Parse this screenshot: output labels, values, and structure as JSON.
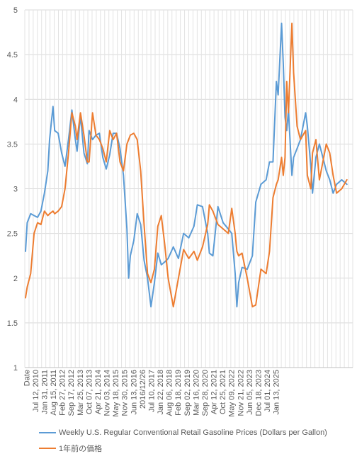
{
  "chart_data": {
    "type": "line",
    "ylim": [
      1,
      5
    ],
    "yticks": [
      1,
      1.5,
      2,
      2.5,
      3,
      3.5,
      4,
      4.5,
      5
    ],
    "grid": true,
    "legend_position": "bottom",
    "x_tick_labels": [
      "Date",
      "Jul 12, 2010",
      "Jan 31, 2011",
      "Aug 15, 2011",
      "Feb 27, 2012",
      "Sep 17, 2012",
      "Mar 25, 2013",
      "Oct 07, 2013",
      "Apr 21, 2014",
      "Nov 03, 2014",
      "May 18, 2015",
      "Nov 30, 2015",
      "Jun 13, 2016",
      "2016/12/26",
      "Jul 10, 2017",
      "Jan 22, 2018",
      "Aug 06, 2018",
      "Feb 18, 2019",
      "Sep 02, 2019",
      "Mar 16, 2020",
      "Sep 28, 2020",
      "Apr 12, 2021",
      "Oct 25, 2021",
      "May 09, 2022",
      "Nov 21, 2022",
      "Jun 05, 2023",
      "Dec 18, 2023",
      "Jul 01, 2024",
      "Jan 13, 2025"
    ],
    "series": [
      {
        "name": "Weekly U.S. Regular Conventional Retail Gasoline Prices (Dollars per Gallon)",
        "color": "#5B9BD5",
        "x": [
          "2010-01",
          "2010-02",
          "2010-04",
          "2010-06",
          "2010-08",
          "2010-10",
          "2010-12",
          "2011-02",
          "2011-03",
          "2011-05",
          "2011-06",
          "2011-08",
          "2011-10",
          "2011-12",
          "2012-02",
          "2012-04",
          "2012-06",
          "2012-07",
          "2012-09",
          "2012-11",
          "2013-01",
          "2013-02",
          "2013-04",
          "2013-06",
          "2013-08",
          "2013-10",
          "2013-12",
          "2014-02",
          "2014-04",
          "2014-06",
          "2014-08",
          "2014-10",
          "2014-12",
          "2015-01",
          "2015-02",
          "2015-04",
          "2015-06",
          "2015-08",
          "2015-10",
          "2015-12",
          "2016-02",
          "2016-04",
          "2016-06",
          "2016-08",
          "2016-10",
          "2016-12",
          "2017-03",
          "2017-06",
          "2017-09",
          "2017-12",
          "2018-03",
          "2018-05",
          "2018-08",
          "2018-11",
          "2018-12",
          "2019-02",
          "2019-05",
          "2019-08",
          "2019-11",
          "2020-01",
          "2020-03",
          "2020-04",
          "2020-05",
          "2020-07",
          "2020-10",
          "2021-01",
          "2021-03",
          "2021-06",
          "2021-09",
          "2021-11",
          "2022-01",
          "2022-03",
          "2022-04",
          "2022-06",
          "2022-07",
          "2022-08",
          "2022-09",
          "2022-10",
          "2022-12",
          "2023-01",
          "2023-03",
          "2023-05",
          "2023-08",
          "2023-09",
          "2023-11",
          "2023-12",
          "2024-02",
          "2024-04",
          "2024-06",
          "2024-08",
          "2024-10",
          "2024-12",
          "2025-02",
          "2025-05",
          "2025-08"
        ],
        "values": [
          2.3,
          2.62,
          2.72,
          2.7,
          2.68,
          2.75,
          2.95,
          3.2,
          3.55,
          3.92,
          3.65,
          3.62,
          3.4,
          3.25,
          3.55,
          3.88,
          3.55,
          3.42,
          3.82,
          3.4,
          3.28,
          3.65,
          3.55,
          3.6,
          3.62,
          3.35,
          3.22,
          3.38,
          3.62,
          3.62,
          3.45,
          3.15,
          2.55,
          2.0,
          2.25,
          2.42,
          2.72,
          2.6,
          2.2,
          2.0,
          1.68,
          1.95,
          2.28,
          2.15,
          2.18,
          2.22,
          2.35,
          2.22,
          2.5,
          2.45,
          2.58,
          2.82,
          2.8,
          2.5,
          2.28,
          2.25,
          2.8,
          2.62,
          2.55,
          2.5,
          2.05,
          1.68,
          1.95,
          2.12,
          2.1,
          2.25,
          2.85,
          3.05,
          3.1,
          3.3,
          3.3,
          4.2,
          4.05,
          4.85,
          4.4,
          3.8,
          3.65,
          3.88,
          3.15,
          3.35,
          3.45,
          3.55,
          3.85,
          3.7,
          3.25,
          2.95,
          3.35,
          3.5,
          3.35,
          3.2,
          3.1,
          2.95,
          3.05,
          3.1,
          3.05
        ]
      },
      {
        "name": "1年前の価格",
        "color": "#ED7D31",
        "x": [
          "2010-01",
          "2010-02",
          "2010-04",
          "2010-06",
          "2010-08",
          "2010-10",
          "2010-12",
          "2011-02",
          "2011-03",
          "2011-05",
          "2011-06",
          "2011-08",
          "2011-10",
          "2011-12",
          "2012-02",
          "2012-04",
          "2012-06",
          "2012-07",
          "2012-09",
          "2012-11",
          "2013-01",
          "2013-02",
          "2013-04",
          "2013-06",
          "2013-08",
          "2013-10",
          "2013-12",
          "2014-02",
          "2014-04",
          "2014-06",
          "2014-08",
          "2014-10",
          "2014-12",
          "2015-01",
          "2015-02",
          "2015-04",
          "2015-06",
          "2015-08",
          "2015-10",
          "2015-12",
          "2016-02",
          "2016-04",
          "2016-06",
          "2016-08",
          "2016-10",
          "2016-12",
          "2017-03",
          "2017-06",
          "2017-09",
          "2017-12",
          "2018-03",
          "2018-05",
          "2018-08",
          "2018-11",
          "2018-12",
          "2019-02",
          "2019-05",
          "2019-08",
          "2019-11",
          "2020-01",
          "2020-03",
          "2020-04",
          "2020-05",
          "2020-07",
          "2020-10",
          "2021-01",
          "2021-03",
          "2021-06",
          "2021-09",
          "2021-11",
          "2022-01",
          "2022-03",
          "2022-04",
          "2022-06",
          "2022-07",
          "2022-08",
          "2022-09",
          "2022-10",
          "2022-12",
          "2023-01",
          "2023-03",
          "2023-05",
          "2023-08",
          "2023-09",
          "2023-11",
          "2023-12",
          "2024-02",
          "2024-04",
          "2024-06",
          "2024-08",
          "2024-10",
          "2024-12",
          "2025-02",
          "2025-05",
          "2025-08"
        ],
        "values": [
          1.78,
          1.9,
          2.05,
          2.5,
          2.62,
          2.6,
          2.75,
          2.7,
          2.72,
          2.75,
          2.72,
          2.75,
          2.8,
          3.0,
          3.4,
          3.85,
          3.7,
          3.55,
          3.85,
          3.6,
          3.3,
          3.3,
          3.85,
          3.6,
          3.55,
          3.45,
          3.3,
          3.65,
          3.55,
          3.62,
          3.3,
          3.2,
          3.5,
          3.55,
          3.6,
          3.62,
          3.55,
          3.2,
          2.6,
          2.05,
          1.95,
          2.1,
          2.58,
          2.7,
          2.38,
          2.0,
          1.68,
          2.0,
          2.32,
          2.22,
          2.3,
          2.2,
          2.35,
          2.6,
          2.82,
          2.75,
          2.6,
          2.55,
          2.5,
          2.78,
          2.5,
          2.3,
          2.25,
          2.28,
          2.0,
          1.68,
          1.7,
          2.1,
          2.05,
          2.3,
          2.9,
          3.05,
          3.1,
          3.35,
          3.15,
          3.35,
          4.2,
          3.85,
          4.85,
          4.3,
          3.7,
          3.55,
          3.65,
          3.15,
          3.0,
          3.4,
          3.55,
          3.1,
          3.3,
          3.5,
          3.4,
          3.15,
          2.95,
          3.0,
          3.1
        ]
      }
    ]
  }
}
